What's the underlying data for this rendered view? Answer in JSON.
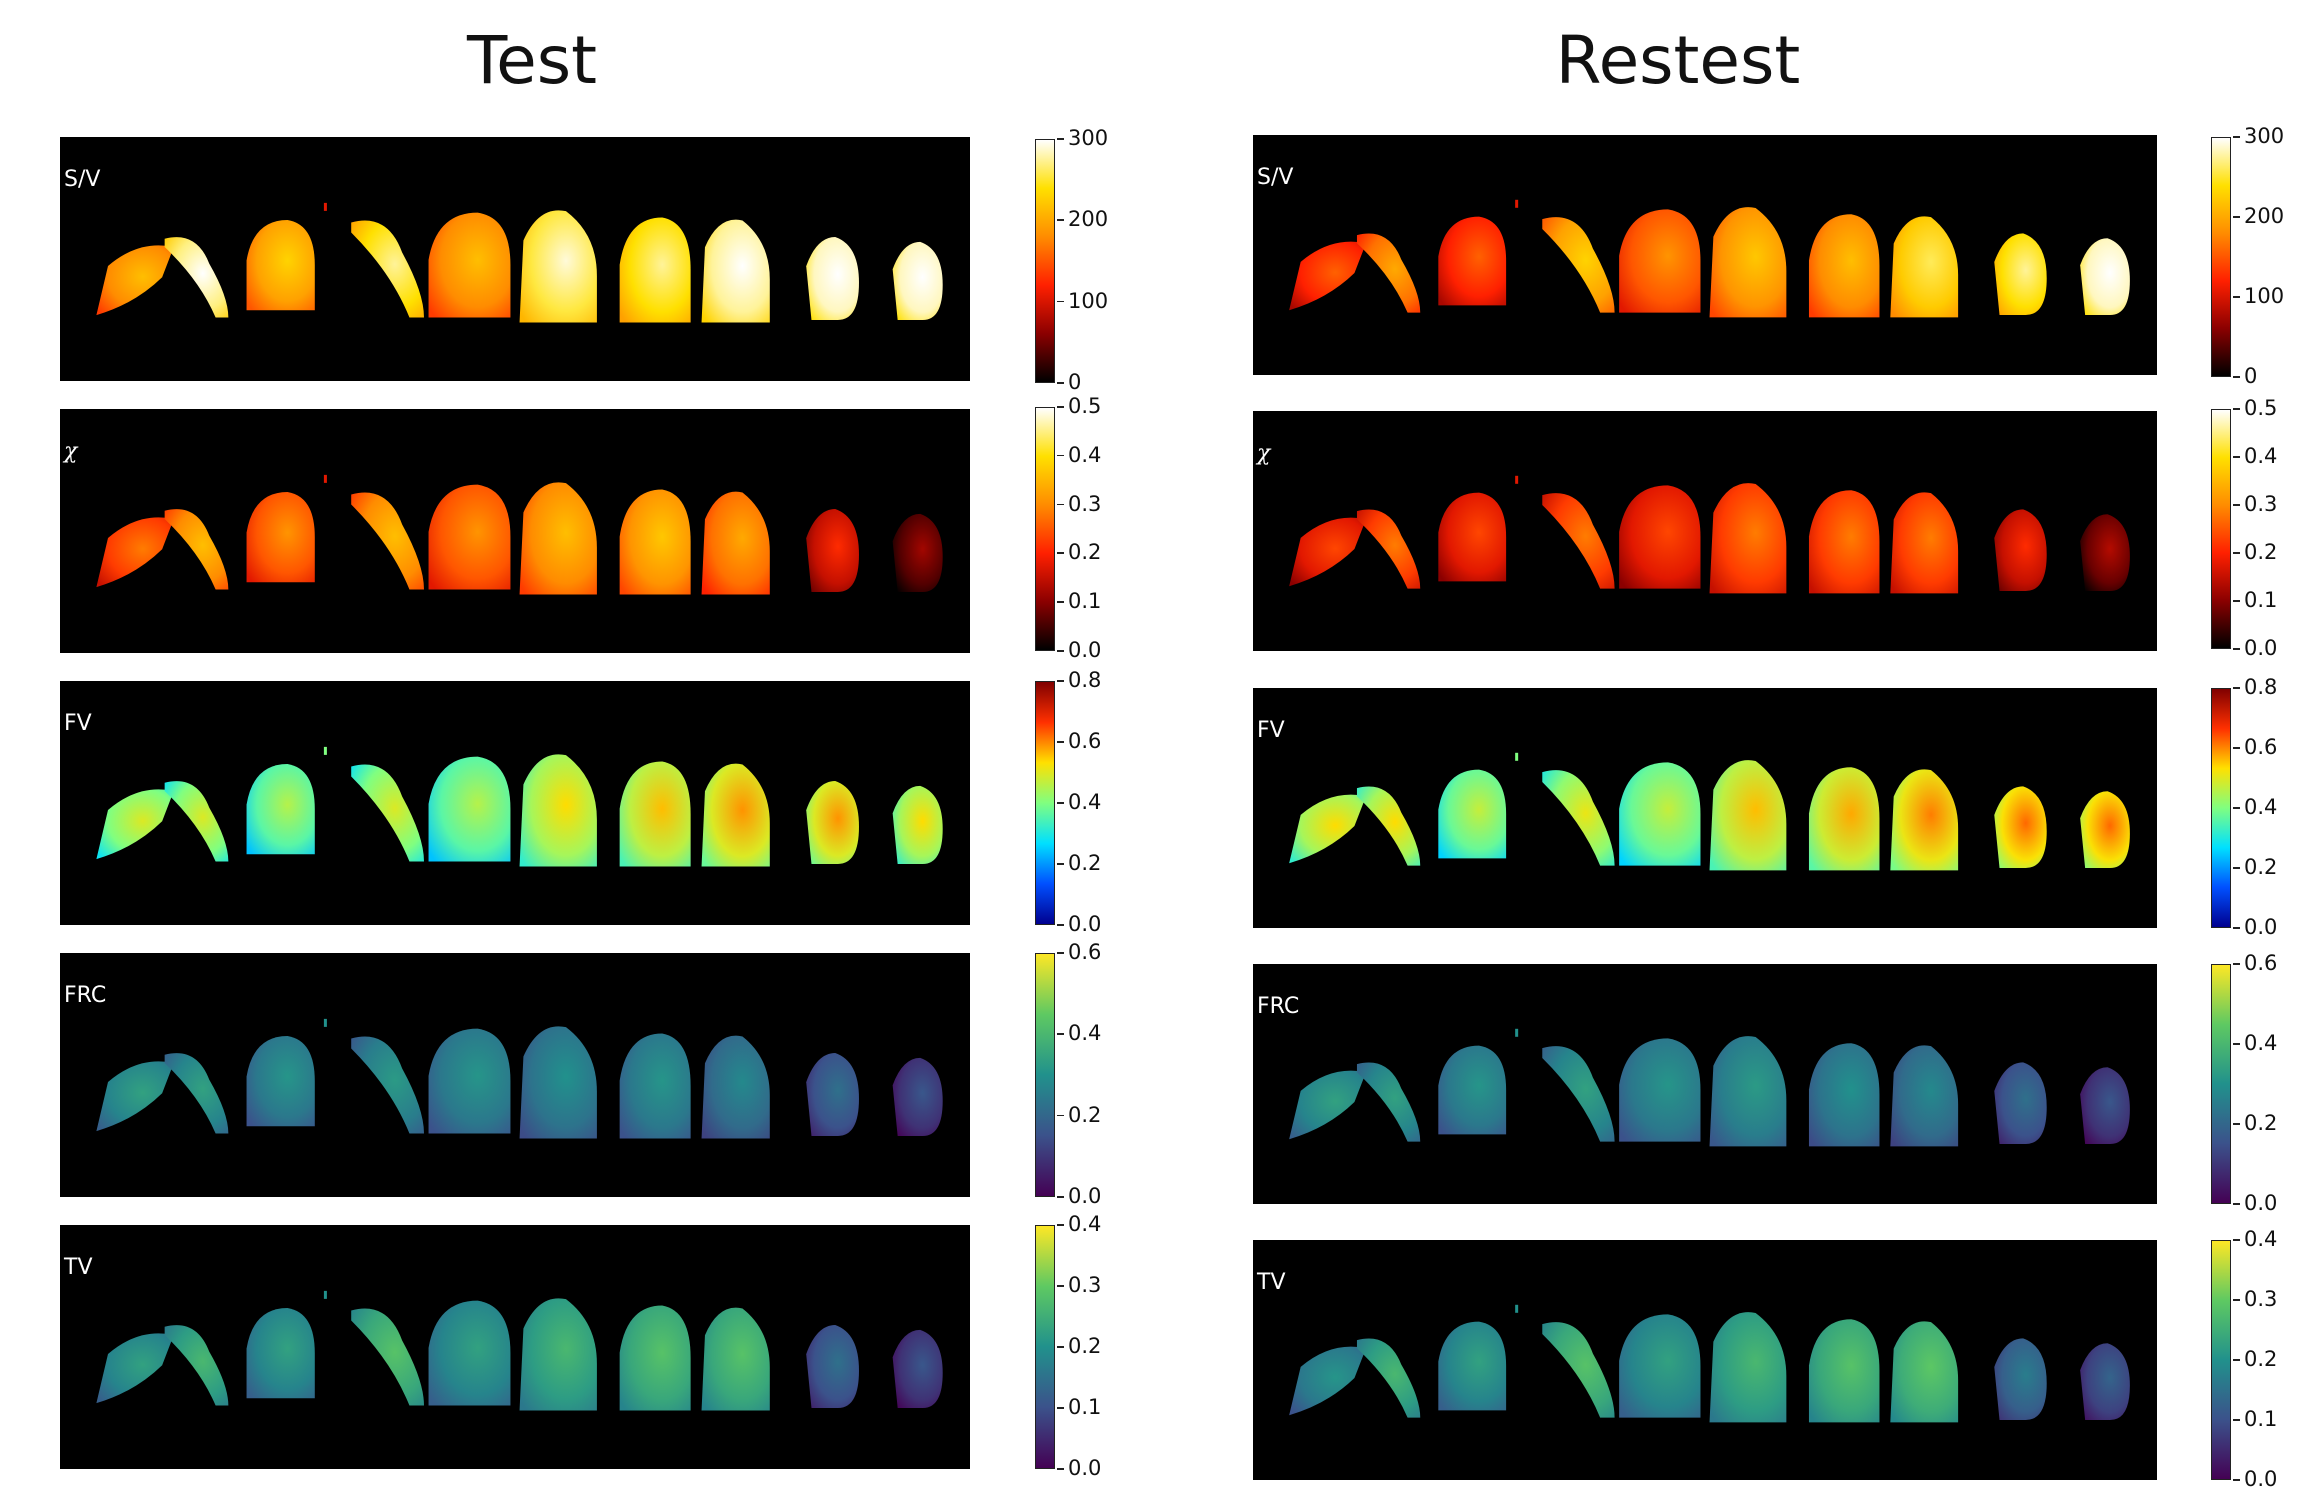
{
  "columns": [
    {
      "title": "Test"
    },
    {
      "title": "Restest"
    }
  ],
  "panels": [
    {
      "label": "S/V",
      "cmap": "hot",
      "ticks": [
        "0",
        "100",
        "200",
        "300"
      ]
    },
    {
      "label": "χ",
      "cmap": "hot",
      "ticks": [
        "0.0",
        "0.1",
        "0.2",
        "0.3",
        "0.4",
        "0.5"
      ]
    },
    {
      "label": "FV",
      "cmap": "jet",
      "ticks": [
        "0.0",
        "0.2",
        "0.4",
        "0.6",
        "0.8"
      ]
    },
    {
      "label": "FRC",
      "cmap": "viridis",
      "ticks": [
        "0.0",
        "0.2",
        "0.4",
        "0.6"
      ]
    },
    {
      "label": "TV",
      "cmap": "viridis",
      "ticks": [
        "0.0",
        "0.1",
        "0.2",
        "0.3",
        "0.4"
      ]
    }
  ],
  "colormaps": {
    "hot": [
      "#000000",
      "#8b0000",
      "#ff2000",
      "#ff8c00",
      "#ffe000",
      "#ffffff"
    ],
    "jet": [
      "#00008f",
      "#0050ff",
      "#00e0ff",
      "#80ff80",
      "#ffe000",
      "#ff3000",
      "#800000"
    ],
    "viridis": [
      "#440154",
      "#3b528b",
      "#21918c",
      "#5ec962",
      "#fde725"
    ]
  }
}
